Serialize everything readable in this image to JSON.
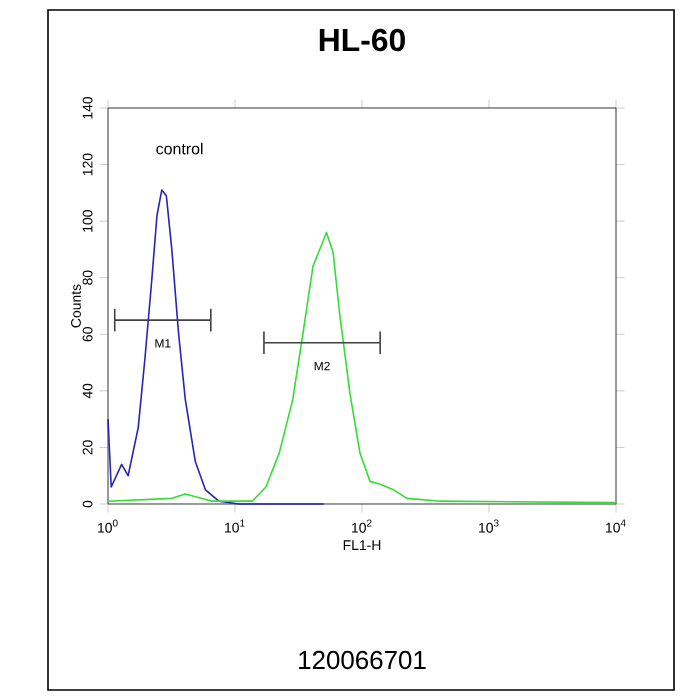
{
  "chart_data": {
    "type": "line",
    "title": "HL-60",
    "xlabel": "FL1-H",
    "ylabel": "Counts",
    "log": "x",
    "xlim": [
      1,
      10000
    ],
    "ylim": [
      0,
      140
    ],
    "xticks": [
      {
        "value": 1,
        "label": "10$^{0}$"
      },
      {
        "value": 10,
        "label": "10$^{1}$"
      },
      {
        "value": 100,
        "label": "10$^{2}$"
      },
      {
        "value": 1000,
        "label": "10$^{3}$"
      },
      {
        "value": 10000,
        "label": "10$^{4}$"
      }
    ],
    "yticks": [
      0,
      20,
      40,
      60,
      80,
      100,
      120,
      140
    ],
    "series": [
      {
        "color": "#2424b8",
        "x": [
          1,
          1.06,
          1.28,
          1.44,
          1.73,
          1.95,
          2.21,
          2.43,
          2.65,
          2.88,
          3.18,
          3.6,
          4.06,
          4.87,
          5.85,
          7.46,
          10.8,
          50
        ],
        "values": [
          30,
          6,
          14,
          10,
          27,
          51,
          79,
          102,
          111,
          109,
          90,
          60,
          37,
          15,
          5,
          1,
          0,
          0
        ]
      },
      {
        "color": "#33dd33",
        "x": [
          1,
          3.18,
          4.06,
          6.6,
          10.8,
          13.7,
          17.5,
          22.3,
          28.5,
          34.2,
          41.1,
          46.5,
          52.5,
          59.2,
          66.8,
          80.4,
          96.4,
          115.6,
          139,
          177,
          226,
          416,
          10000
        ],
        "values": [
          1,
          2,
          3.5,
          1,
          1,
          1,
          6,
          18,
          37,
          60,
          84,
          90,
          96,
          89,
          67,
          39,
          18,
          8,
          7,
          5,
          2,
          1,
          0.5
        ]
      },
      {
        "color": "#404040",
        "x": [
          1.13,
          6.45
        ],
        "values": [
          65,
          65
        ],
        "errors": [
          4,
          4
        ]
      },
      {
        "color": "#404040",
        "x": [
          16.9,
          139
        ],
        "values": [
          57,
          57
        ],
        "errors": [
          4,
          4
        ]
      }
    ],
    "annotations": [
      "control",
      "M1",
      "M2",
      "120066701"
    ]
  }
}
